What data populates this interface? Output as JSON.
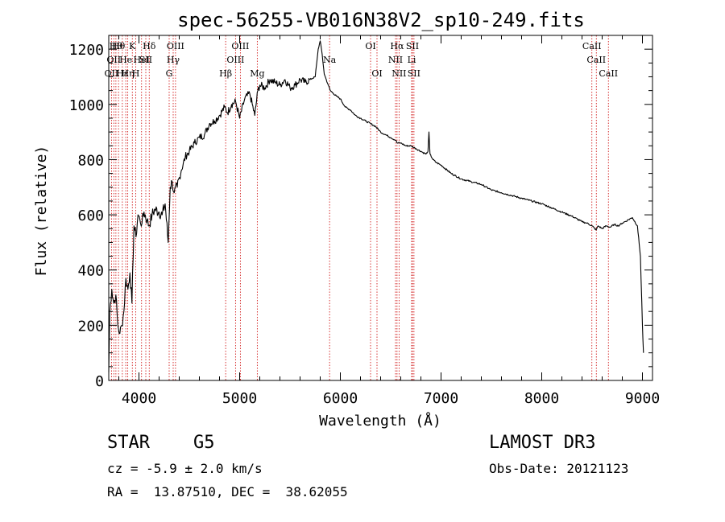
{
  "chart_data": {
    "type": "line",
    "title": "spec-56255-VB016N38V2_sp10-249.fits",
    "xlabel": "Wavelength (Å)",
    "ylabel": "Flux (relative)",
    "xlim": [
      3700,
      9100
    ],
    "ylim": [
      0,
      1250
    ],
    "xticks": [
      4000,
      5000,
      6000,
      7000,
      8000,
      9000
    ],
    "xtick_labels": [
      "4000",
      "5000",
      "6000",
      "7000",
      "8000",
      "9000"
    ],
    "yticks": [
      0,
      200,
      400,
      600,
      800,
      1000,
      1200
    ],
    "ytick_labels": [
      "0",
      "200",
      "400",
      "600",
      "800",
      "1000",
      "1200"
    ],
    "series": [
      {
        "name": "flux",
        "x": [
          3700,
          3710,
          3730,
          3750,
          3770,
          3790,
          3810,
          3830,
          3850,
          3870,
          3890,
          3910,
          3930,
          3950,
          3970,
          3990,
          4010,
          4030,
          4050,
          4080,
          4100,
          4130,
          4160,
          4200,
          4230,
          4260,
          4290,
          4310,
          4330,
          4350,
          4380,
          4420,
          4460,
          4500,
          4550,
          4600,
          4650,
          4700,
          4750,
          4800,
          4850,
          4880,
          4920,
          4960,
          5000,
          5050,
          5100,
          5150,
          5180,
          5200,
          5250,
          5300,
          5350,
          5400,
          5450,
          5500,
          5550,
          5600,
          5650,
          5700,
          5750,
          5780,
          5800,
          5820,
          5840,
          5860,
          5880,
          5900,
          5930,
          5960,
          6000,
          6050,
          6100,
          6150,
          6200,
          6250,
          6300,
          6350,
          6400,
          6450,
          6500,
          6550,
          6563,
          6600,
          6650,
          6700,
          6750,
          6800,
          6850,
          6870,
          6880,
          6890,
          6920,
          6950,
          7000,
          7100,
          7200,
          7300,
          7400,
          7500,
          7600,
          7700,
          7800,
          7900,
          8000,
          8100,
          8200,
          8300,
          8400,
          8450,
          8500,
          8540,
          8560,
          8600,
          8640,
          8680,
          8720,
          8760,
          8800,
          8850,
          8900,
          8950,
          8980,
          9000,
          9010
        ],
        "values": [
          30,
          250,
          330,
          280,
          310,
          200,
          170,
          200,
          250,
          370,
          330,
          390,
          280,
          560,
          520,
          600,
          580,
          570,
          610,
          580,
          560,
          600,
          620,
          610,
          600,
          640,
          500,
          700,
          720,
          680,
          700,
          760,
          810,
          830,
          860,
          880,
          890,
          930,
          940,
          960,
          990,
          970,
          1000,
          1010,
          950,
          1020,
          1040,
          960,
          1050,
          1070,
          1060,
          1090,
          1080,
          1070,
          1090,
          1060,
          1070,
          1090,
          1080,
          1090,
          1100,
          1200,
          1230,
          1180,
          1110,
          1090,
          1070,
          1050,
          1040,
          1030,
          1020,
          990,
          980,
          960,
          950,
          940,
          930,
          920,
          900,
          890,
          880,
          870,
          860,
          860,
          850,
          850,
          840,
          830,
          820,
          830,
          900,
          820,
          800,
          790,
          780,
          750,
          730,
          720,
          710,
          690,
          680,
          670,
          660,
          650,
          640,
          625,
          610,
          595,
          575,
          570,
          560,
          545,
          560,
          550,
          560,
          555,
          565,
          560,
          570,
          580,
          590,
          560,
          450,
          200,
          100
        ]
      }
    ],
    "lines": [
      {
        "wl": 3727,
        "row": 2,
        "label": "OII"
      },
      {
        "wl": 3750,
        "row": 1,
        "label": "OII"
      },
      {
        "wl": 3771,
        "row": 0,
        "label": "Hθ"
      },
      {
        "wl": 3797,
        "row": 0,
        "label": "Hθ"
      },
      {
        "wl": 3835,
        "row": 2,
        "label": "Hε"
      },
      {
        "wl": 3869,
        "row": 1,
        "label": "He"
      },
      {
        "wl": 3889,
        "row": 2,
        "label": "Hη"
      },
      {
        "wl": 3934,
        "row": 0,
        "label": "K"
      },
      {
        "wl": 3968,
        "row": 2,
        "label": "H"
      },
      {
        "wl": 4026,
        "row": 1,
        "label": "HeI"
      },
      {
        "wl": 4068,
        "row": 1,
        "label": "SII"
      },
      {
        "wl": 4102,
        "row": 0,
        "label": "Hδ"
      },
      {
        "wl": 4300,
        "row": 2,
        "label": "G"
      },
      {
        "wl": 4340,
        "row": 1,
        "label": "Hγ"
      },
      {
        "wl": 4363,
        "row": 0,
        "label": "OIII"
      },
      {
        "wl": 4861,
        "row": 2,
        "label": "Hβ"
      },
      {
        "wl": 4959,
        "row": 1,
        "label": "OIII"
      },
      {
        "wl": 5007,
        "row": 0,
        "label": "OIII"
      },
      {
        "wl": 5175,
        "row": 2,
        "label": "Mg"
      },
      {
        "wl": 5893,
        "row": 1,
        "label": "Na"
      },
      {
        "wl": 6300,
        "row": 0,
        "label": "OI"
      },
      {
        "wl": 6364,
        "row": 2,
        "label": "OI"
      },
      {
        "wl": 6548,
        "row": 1,
        "label": "NII"
      },
      {
        "wl": 6563,
        "row": 0,
        "label": "Hα"
      },
      {
        "wl": 6583,
        "row": 2,
        "label": "NII"
      },
      {
        "wl": 6708,
        "row": 1,
        "label": "Li"
      },
      {
        "wl": 6716,
        "row": 0,
        "label": "SII"
      },
      {
        "wl": 6731,
        "row": 2,
        "label": "SII"
      },
      {
        "wl": 8498,
        "row": 0,
        "label": "CaII"
      },
      {
        "wl": 8542,
        "row": 1,
        "label": "CaII"
      },
      {
        "wl": 8662,
        "row": 2,
        "label": "CaII"
      }
    ]
  },
  "info": {
    "class": "STAR",
    "subclass": "G5",
    "cz": "cz = -5.9 ± 2.0 km/s",
    "coords": "RA =  13.87510, DEC =  38.62055",
    "survey": "LAMOST DR3",
    "obs_date": "Obs-Date: 20121123"
  },
  "colors": {
    "line_marker": "#cc0000",
    "spectrum": "#000000"
  }
}
